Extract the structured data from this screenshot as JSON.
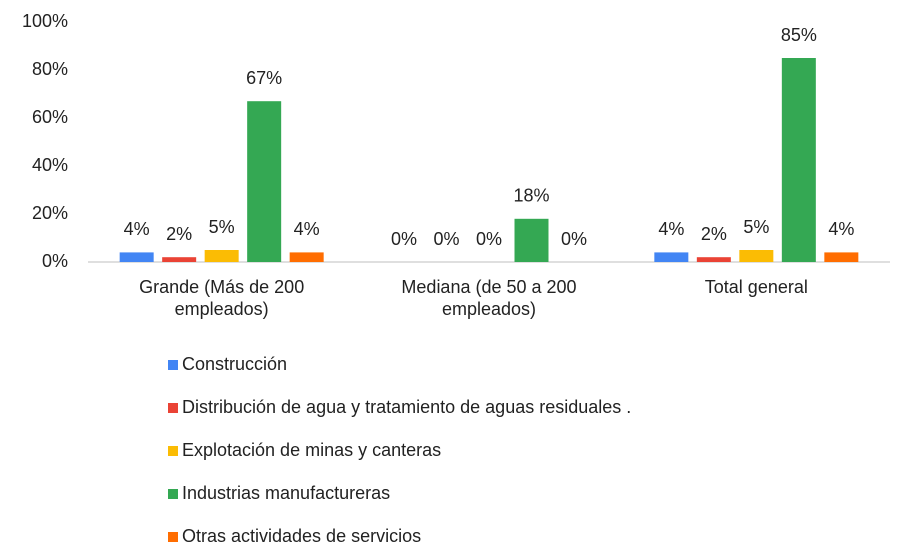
{
  "chart_data": {
    "type": "bar",
    "categories": [
      "Grande (Más de 200 empleados)",
      "Mediana (de 50 a 200 empleados)",
      "Total general"
    ],
    "series": [
      {
        "name": "Construcción",
        "color": "#4285f4",
        "values": [
          4,
          0,
          4
        ],
        "value_labels": [
          "4%",
          "0%",
          "4%"
        ]
      },
      {
        "name": "Distribución de agua y tratamiento de aguas residuales .",
        "color": "#ea4335",
        "values": [
          2,
          0,
          2
        ],
        "value_labels": [
          "2%",
          "0%",
          "2%"
        ]
      },
      {
        "name": "Explotación de minas y canteras",
        "color": "#fbbc04",
        "values": [
          5,
          0,
          5
        ],
        "value_labels": [
          "5%",
          "0%",
          "5%"
        ]
      },
      {
        "name": "Industrias manufactureras",
        "color": "#34a853",
        "values": [
          67,
          18,
          85
        ],
        "value_labels": [
          "67%",
          "18%",
          "85%"
        ]
      },
      {
        "name": "Otras actividades de servicios",
        "color": "#ff6d01",
        "values": [
          4,
          0,
          4
        ],
        "value_labels": [
          "4%",
          "0%",
          "4%"
        ]
      }
    ],
    "ylim": [
      0,
      100
    ],
    "yticks": [
      {
        "value": 0,
        "label": "0%"
      },
      {
        "value": 20,
        "label": "20%"
      },
      {
        "value": 40,
        "label": "40%"
      },
      {
        "value": 60,
        "label": "60%"
      },
      {
        "value": 80,
        "label": "80%"
      },
      {
        "value": 100,
        "label": "100%"
      }
    ],
    "grid": false,
    "legend": "bottom"
  }
}
